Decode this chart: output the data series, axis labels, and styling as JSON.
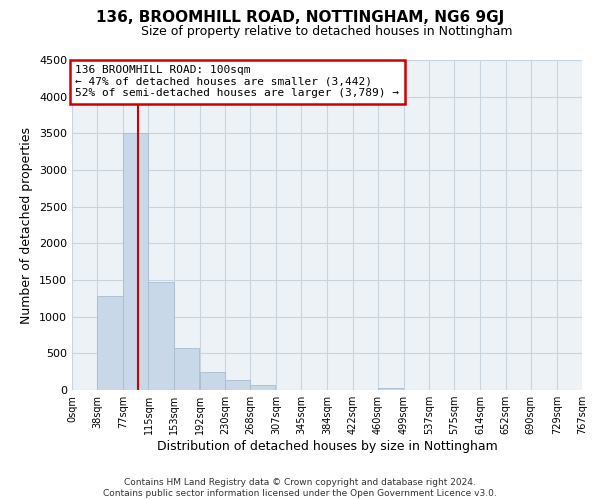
{
  "title": "136, BROOMHILL ROAD, NOTTINGHAM, NG6 9GJ",
  "subtitle": "Size of property relative to detached houses in Nottingham",
  "xlabel": "Distribution of detached houses by size in Nottingham",
  "ylabel": "Number of detached properties",
  "bar_left_edges": [
    0,
    38,
    77,
    115,
    153,
    192,
    230,
    268,
    307,
    345,
    384,
    422,
    460,
    499,
    537,
    575,
    614,
    652,
    690,
    729
  ],
  "bar_heights": [
    0,
    1280,
    3500,
    1470,
    570,
    240,
    135,
    75,
    0,
    0,
    0,
    0,
    30,
    0,
    0,
    0,
    0,
    0,
    0,
    0
  ],
  "bin_width": 38,
  "bar_color": "#c8d8e8",
  "bar_edge_color": "#a8bcd0",
  "vline_x": 100,
  "vline_color": "#cc0000",
  "annotation_box_edge_color": "#cc0000",
  "annotation_line1": "136 BROOMHILL ROAD: 100sqm",
  "annotation_line2": "← 47% of detached houses are smaller (3,442)",
  "annotation_line3": "52% of semi-detached houses are larger (3,789) →",
  "ylim": [
    0,
    4500
  ],
  "yticks": [
    0,
    500,
    1000,
    1500,
    2000,
    2500,
    3000,
    3500,
    4000,
    4500
  ],
  "xtick_labels": [
    "0sqm",
    "38sqm",
    "77sqm",
    "115sqm",
    "153sqm",
    "192sqm",
    "230sqm",
    "268sqm",
    "307sqm",
    "345sqm",
    "384sqm",
    "422sqm",
    "460sqm",
    "499sqm",
    "537sqm",
    "575sqm",
    "614sqm",
    "652sqm",
    "690sqm",
    "729sqm",
    "767sqm"
  ],
  "xtick_positions": [
    0,
    38,
    77,
    115,
    153,
    192,
    230,
    268,
    307,
    345,
    384,
    422,
    460,
    499,
    537,
    575,
    614,
    652,
    690,
    729,
    767
  ],
  "grid_color": "#c8d4de",
  "background_color": "#edf2f7",
  "footer_line1": "Contains HM Land Registry data © Crown copyright and database right 2024.",
  "footer_line2": "Contains public sector information licensed under the Open Government Licence v3.0.",
  "title_fontsize": 11,
  "subtitle_fontsize": 9
}
